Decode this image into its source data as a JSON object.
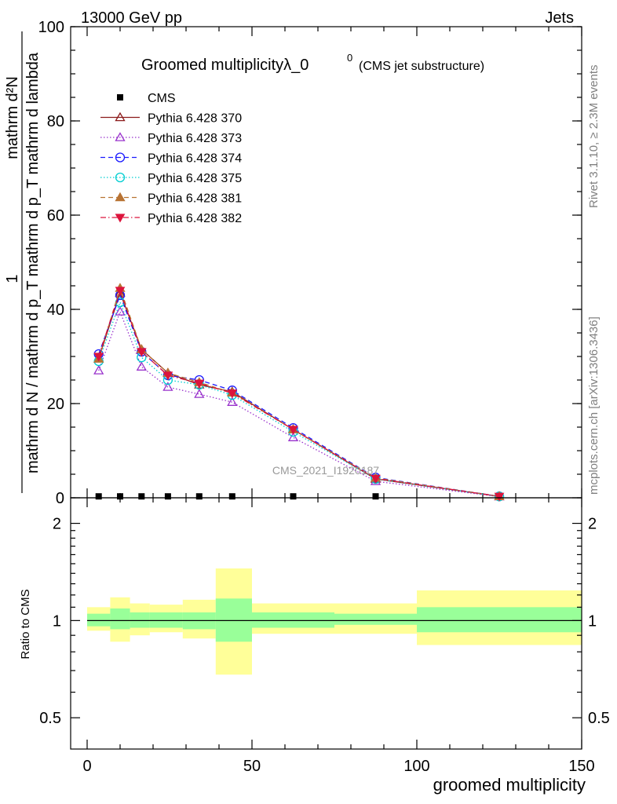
{
  "header": {
    "left": "13000 GeV pp",
    "right": "Jets"
  },
  "side_labels": {
    "rivet": "Rivet 3.1.10, ≥ 2.3M events",
    "mcplots": "mcplots.cern.ch [arXiv:1306.3436]"
  },
  "watermark": "CMS_2021_I1920187",
  "chart_data": [
    {
      "type": "line",
      "title": "Groomed multiplicityλ_0",
      "title_superscript": "0",
      "subtitle": "(CMS jet substructure)",
      "ylabel": {
        "numerator": "1",
        "denominator": "mathrm d N / mathrm d p_T",
        "mid": "mathrm d N",
        "tail": "mathrm d p_T mathrm d lambda",
        "numerator_extra": "mathrm d²N"
      },
      "ylabel_lines": [
        "mathrm d²N",
        "1",
        "mathrm d N / mathrm d p_T mathrm d p_T mathrm d lambda"
      ],
      "xlim": [
        -5,
        150
      ],
      "ylim": [
        0,
        100
      ],
      "yticks": [
        0,
        20,
        40,
        60,
        80,
        100
      ],
      "ytick_labels": [
        "0",
        "20",
        "40",
        "60",
        "80",
        "100"
      ],
      "legend_placement": "top-left",
      "x": [
        3.5,
        10,
        16.5,
        24.5,
        34,
        44,
        62.5,
        87.5,
        125
      ],
      "series": [
        {
          "name": "CMS",
          "color": "#000000",
          "marker": "square",
          "values": [
            0.3,
            0.3,
            0.3,
            0.3,
            0.3,
            0.3,
            0.3,
            0.3,
            0.3
          ]
        },
        {
          "name": "Pythia 6.428 370",
          "color": "#8b1a1a",
          "marker": "triangle-open",
          "dash": "",
          "values": [
            29.5,
            43.5,
            31.5,
            26.5,
            24.0,
            22.5,
            14.5,
            4.0,
            0.3
          ]
        },
        {
          "name": "Pythia 6.428 373",
          "color": "#9932cc",
          "marker": "triangle-open",
          "dash": "1.5,2.5",
          "values": [
            27.0,
            39.5,
            27.8,
            23.5,
            22.0,
            20.3,
            12.8,
            3.5,
            0.25
          ]
        },
        {
          "name": "Pythia 6.428 374",
          "color": "#1a1aff",
          "marker": "circle-open",
          "dash": "6,4",
          "values": [
            30.5,
            43.0,
            31.0,
            26.0,
            25.0,
            22.8,
            14.8,
            4.3,
            0.3
          ]
        },
        {
          "name": "Pythia 6.428 375",
          "color": "#00ced1",
          "marker": "circle-open",
          "dash": "1.5,2.5",
          "values": [
            29.0,
            41.5,
            29.8,
            25.0,
            24.0,
            21.8,
            14.0,
            4.0,
            0.28
          ]
        },
        {
          "name": "Pythia 6.428 381",
          "color": "#b87333",
          "marker": "triangle-filled",
          "dash": "6,4",
          "values": [
            29.5,
            44.5,
            31.5,
            26.5,
            24.5,
            22.3,
            14.5,
            4.2,
            0.3
          ]
        },
        {
          "name": "Pythia 6.428 382",
          "color": "#dc143c",
          "marker": "triangle-down-filled",
          "dash": "7,3,1.5,3",
          "values": [
            30.0,
            44.0,
            31.0,
            26.0,
            24.3,
            22.2,
            14.5,
            4.1,
            0.3
          ]
        }
      ]
    },
    {
      "type": "area",
      "ylabel": "Ratio to CMS",
      "xlabel": "groomed multiplicity",
      "xlim": [
        -5,
        150
      ],
      "xticks": [
        0,
        50,
        100,
        150
      ],
      "xtick_labels": [
        "0",
        "50",
        "100",
        "150"
      ],
      "ylim": [
        0.4,
        2.4
      ],
      "log_scale": true,
      "yticks": [
        0.5,
        1,
        2
      ],
      "ytick_labels": [
        "0.5",
        "1",
        "2"
      ],
      "bins": [
        [
          0,
          7
        ],
        [
          7,
          13
        ],
        [
          13,
          19
        ],
        [
          19,
          29
        ],
        [
          29,
          39
        ],
        [
          39,
          50
        ],
        [
          50,
          75
        ],
        [
          75,
          100
        ],
        [
          100,
          150
        ]
      ],
      "band_inner_low": [
        0.96,
        0.94,
        0.95,
        0.95,
        0.94,
        0.86,
        0.95,
        0.97,
        0.92
      ],
      "band_inner_high": [
        1.05,
        1.09,
        1.06,
        1.06,
        1.06,
        1.17,
        1.06,
        1.05,
        1.1
      ],
      "band_outer_low": [
        0.93,
        0.86,
        0.9,
        0.92,
        0.88,
        0.68,
        0.91,
        0.91,
        0.84
      ],
      "band_outer_high": [
        1.1,
        1.18,
        1.13,
        1.12,
        1.16,
        1.45,
        1.13,
        1.13,
        1.24
      ],
      "band_inner_color": "#99ff99",
      "band_outer_color": "#ffff99",
      "reference": 1
    }
  ]
}
